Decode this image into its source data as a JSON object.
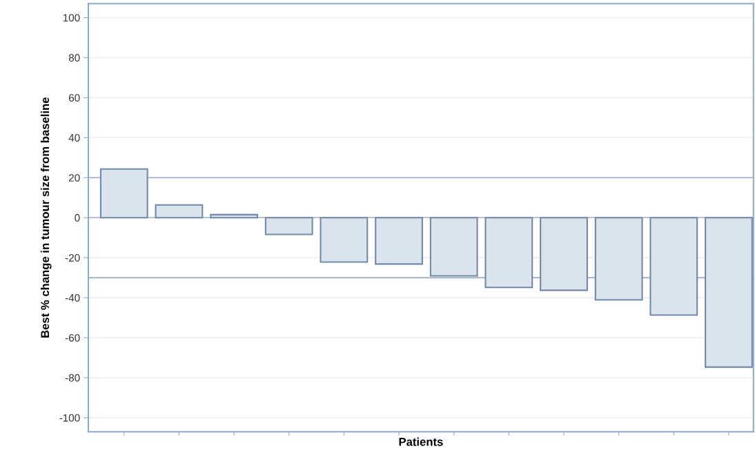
{
  "chart_data": {
    "type": "bar",
    "xlabel": "Patients",
    "ylabel": "Best % change in tumour size from baseline",
    "categories": [
      null,
      null,
      null,
      null,
      null,
      null,
      null,
      null,
      null,
      null,
      null,
      null
    ],
    "values": [
      24.3,
      6.4,
      1.5,
      -8.4,
      -22.2,
      -23.2,
      -29.1,
      -34.9,
      -36.3,
      -41.1,
      -48.7,
      -74.7
    ],
    "color": "#dbe3ed",
    "ylim": [
      -107,
      107
    ],
    "yticks": [
      -100,
      -80,
      -60,
      -40,
      -20,
      0,
      20,
      40,
      60,
      80,
      100
    ],
    "grid": "y",
    "tick_labels": "y",
    "ref_lines": [
      {
        "axis": "y",
        "value": 20,
        "color": "#aebbcd"
      },
      {
        "axis": "y",
        "value": -30,
        "color": "#aebbcd"
      }
    ]
  }
}
